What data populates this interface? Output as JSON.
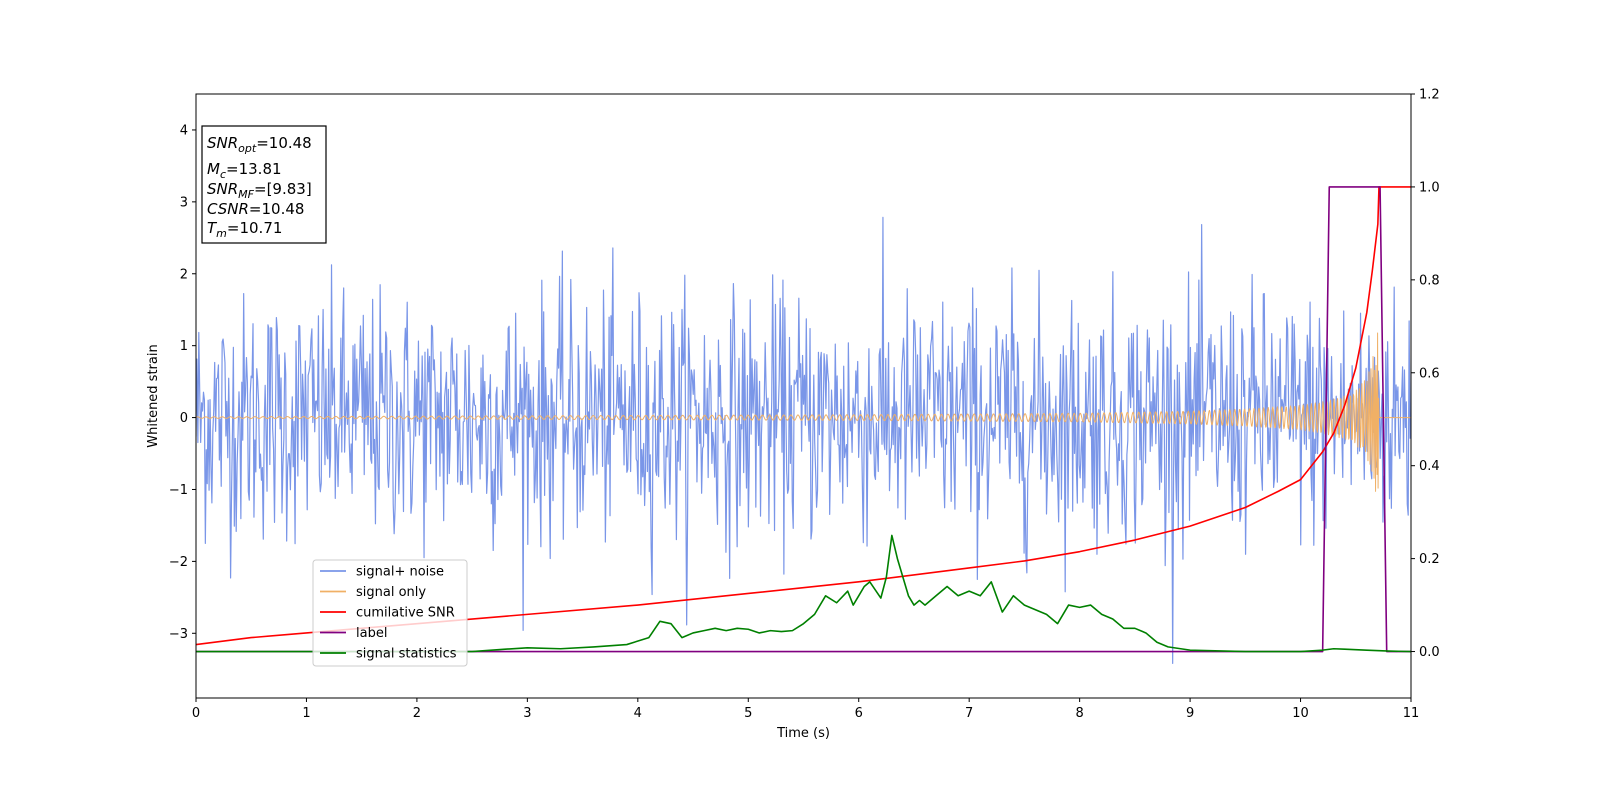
{
  "chart_data": {
    "type": "line",
    "title": "",
    "xlabel": "Time (s)",
    "ylabel": "Whitened strain",
    "y2label": "",
    "xlim": [
      0,
      11
    ],
    "ylim": [
      -3.9,
      4.5
    ],
    "y2lim": [
      -0.1,
      1.2
    ],
    "x_ticks": [
      0,
      1,
      2,
      3,
      4,
      5,
      6,
      7,
      8,
      9,
      10,
      11
    ],
    "y_ticks": [
      -3,
      -2,
      -1,
      0,
      1,
      2,
      3,
      4
    ],
    "y2_ticks": [
      0.0,
      0.2,
      0.4,
      0.6,
      0.8,
      1.0,
      1.2
    ],
    "grid": false,
    "legend_position": "lower-left",
    "annotation": {
      "lines": [
        {
          "base": "SNR",
          "sub": "opt",
          "rest": "=10.48"
        },
        {
          "base": "M",
          "sub": "c",
          "rest": "=13.81"
        },
        {
          "base": "SNR",
          "sub": "MF",
          "rest": "=[9.83]"
        },
        {
          "base": "CSNR",
          "sub": "",
          "rest": "=10.48"
        },
        {
          "base": "T",
          "sub": "m",
          "rest": "=10.71"
        }
      ]
    },
    "series": [
      {
        "name": "signal+ noise",
        "axis": "left",
        "color": "#7a96e8",
        "kind": "noise",
        "sigma": 0.85,
        "peak_max": 3.2,
        "peak_min": -3.5,
        "samples": 1300
      },
      {
        "name": "signal only",
        "axis": "left",
        "color": "#f0b066",
        "kind": "chirp",
        "merger_time": 10.71,
        "envelope_points": {
          "x": [
            0,
            2,
            4,
            6,
            8,
            9,
            9.5,
            10,
            10.2,
            10.4,
            10.5,
            10.6,
            10.65,
            10.7,
            10.71
          ],
          "amp": [
            0.01,
            0.02,
            0.03,
            0.04,
            0.06,
            0.09,
            0.12,
            0.17,
            0.22,
            0.3,
            0.38,
            0.55,
            0.8,
            1.2,
            1.3
          ]
        }
      },
      {
        "name": "cumilative SNR",
        "axis": "right",
        "color": "#ff0000",
        "x": [
          0,
          0.5,
          1,
          2,
          3,
          4,
          5,
          6,
          7,
          7.5,
          8,
          8.5,
          9,
          9.5,
          9.8,
          10,
          10.2,
          10.3,
          10.4,
          10.5,
          10.6,
          10.65,
          10.7,
          10.71,
          11
        ],
        "y": [
          0.015,
          0.03,
          0.04,
          0.06,
          0.08,
          0.1,
          0.125,
          0.15,
          0.18,
          0.195,
          0.215,
          0.24,
          0.27,
          0.31,
          0.345,
          0.37,
          0.43,
          0.47,
          0.53,
          0.61,
          0.73,
          0.82,
          0.92,
          1.0,
          1.0
        ]
      },
      {
        "name": "label",
        "axis": "right",
        "color": "#800080",
        "x": [
          0,
          10.2,
          10.26,
          10.72,
          10.78,
          11
        ],
        "y": [
          0,
          0,
          1,
          1,
          0,
          0
        ]
      },
      {
        "name": "signal statistics",
        "axis": "right",
        "color": "#008000",
        "x": [
          0,
          2.5,
          2.8,
          3.0,
          3.3,
          3.6,
          3.9,
          4.1,
          4.2,
          4.3,
          4.4,
          4.5,
          4.6,
          4.7,
          4.8,
          4.9,
          5.0,
          5.1,
          5.2,
          5.3,
          5.4,
          5.5,
          5.6,
          5.7,
          5.8,
          5.9,
          5.95,
          6.0,
          6.05,
          6.1,
          6.2,
          6.25,
          6.3,
          6.35,
          6.45,
          6.5,
          6.55,
          6.6,
          6.7,
          6.8,
          6.9,
          7.0,
          7.1,
          7.2,
          7.3,
          7.4,
          7.5,
          7.6,
          7.7,
          7.8,
          7.9,
          8.0,
          8.1,
          8.2,
          8.3,
          8.4,
          8.5,
          8.6,
          8.7,
          8.8,
          9.0,
          9.5,
          10.0,
          10.2,
          10.3,
          10.4,
          10.5,
          10.6,
          10.8,
          11
        ],
        "y": [
          0,
          0.0,
          0.005,
          0.008,
          0.006,
          0.01,
          0.015,
          0.03,
          0.065,
          0.06,
          0.03,
          0.04,
          0.045,
          0.05,
          0.045,
          0.05,
          0.048,
          0.04,
          0.045,
          0.043,
          0.045,
          0.06,
          0.08,
          0.12,
          0.105,
          0.13,
          0.1,
          0.12,
          0.14,
          0.15,
          0.115,
          0.16,
          0.25,
          0.2,
          0.12,
          0.1,
          0.11,
          0.1,
          0.12,
          0.14,
          0.12,
          0.13,
          0.12,
          0.15,
          0.085,
          0.12,
          0.1,
          0.09,
          0.08,
          0.06,
          0.1,
          0.095,
          0.1,
          0.08,
          0.07,
          0.05,
          0.05,
          0.04,
          0.02,
          0.01,
          0.003,
          0.0,
          0.0,
          0.003,
          0.006,
          0.005,
          0.004,
          0.003,
          0.001,
          0.0
        ]
      }
    ]
  }
}
